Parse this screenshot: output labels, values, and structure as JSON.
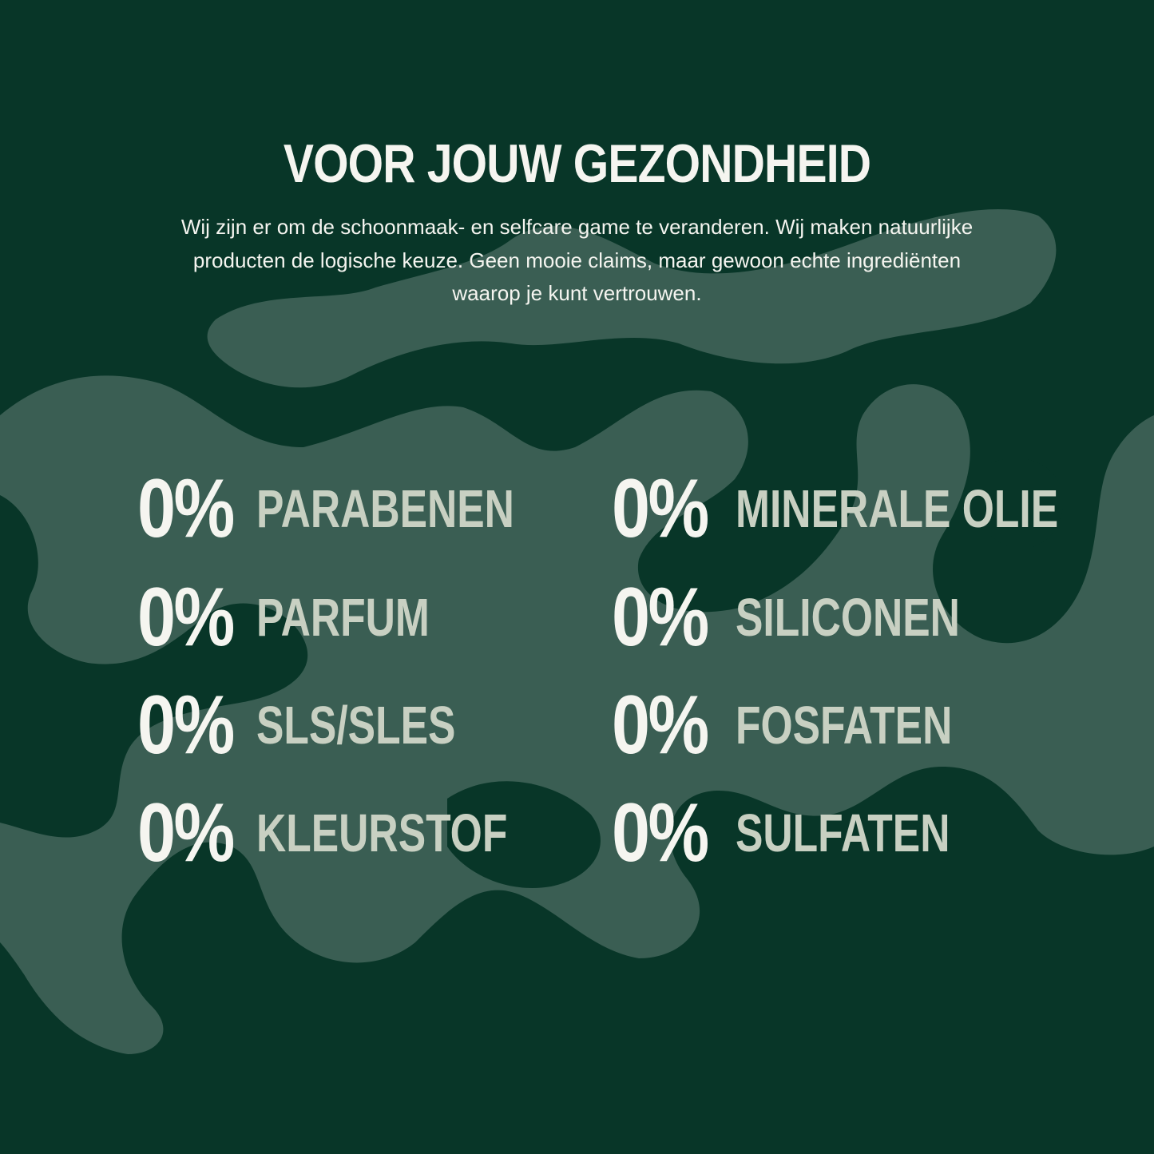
{
  "colors": {
    "background": "#083628",
    "pattern": "#3a5e53",
    "heading": "#f5f5f0",
    "label": "#c8d0c2"
  },
  "heading": "VOOR JOUW GEZONDHEID",
  "intro": "Wij zijn er om de schoonmaak- en selfcare game te veranderen. Wij maken natuurlijke producten de logische keuze. Geen mooie claims, maar gewoon echte ingrediënten waarop je kunt vertrouwen.",
  "items": [
    {
      "value": "0%",
      "label": "PARABENEN"
    },
    {
      "value": "0%",
      "label": "PARFUM"
    },
    {
      "value": "0%",
      "label": "SLS/SLES"
    },
    {
      "value": "0%",
      "label": "KLEURSTOF"
    },
    {
      "value": "0%",
      "label": "MINERALE OLIE"
    },
    {
      "value": "0%",
      "label": "SILICONEN"
    },
    {
      "value": "0%",
      "label": "FOSFATEN"
    },
    {
      "value": "0%",
      "label": "SULFATEN"
    }
  ]
}
